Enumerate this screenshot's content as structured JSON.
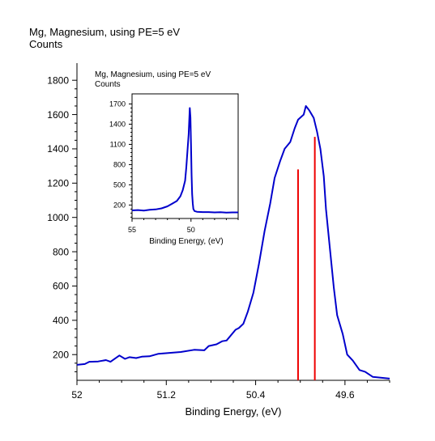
{
  "chart_data": [
    {
      "type": "line",
      "title": "Mg, Magnesium, using PE=5 eV",
      "ylabel": "Counts",
      "xlabel": "Binding Energy, (eV)",
      "x_reversed": true,
      "xlim": [
        52.0,
        49.2
      ],
      "ylim": [
        50,
        1900
      ],
      "x_ticks": [
        "52",
        "51.2",
        "50.4",
        "49.6"
      ],
      "x_tick_values": [
        52.0,
        51.2,
        50.4,
        49.6
      ],
      "y_ticks": [
        "200",
        "400",
        "600",
        "800",
        "1000",
        "1200",
        "1400",
        "1600",
        "1800"
      ],
      "y_tick_values": [
        200,
        400,
        600,
        800,
        1000,
        1200,
        1400,
        1600,
        1800
      ],
      "line_color": "#0000cc",
      "series": [
        {
          "x": [
            52.0,
            51.93,
            51.89,
            51.81,
            51.74,
            51.7,
            51.62,
            51.57,
            51.53,
            51.47,
            51.42,
            51.35,
            51.27,
            51.17,
            51.07,
            50.95,
            50.86,
            50.82,
            50.75,
            50.7,
            50.66,
            50.58,
            50.55,
            50.51,
            50.47,
            50.42,
            50.37,
            50.32,
            50.27,
            50.23,
            50.18,
            50.14,
            50.09,
            50.05,
            50.02,
            49.97,
            49.95,
            49.92,
            49.88,
            49.85,
            49.82,
            49.79,
            49.77,
            49.74,
            49.7,
            49.67,
            49.62,
            49.58,
            49.53,
            49.47,
            49.42,
            49.35,
            49.28,
            49.2
          ],
          "y": [
            140,
            145,
            158,
            160,
            168,
            158,
            195,
            175,
            185,
            180,
            188,
            190,
            205,
            210,
            215,
            228,
            225,
            250,
            260,
            278,
            282,
            345,
            355,
            380,
            450,
            560,
            730,
            920,
            1080,
            1230,
            1330,
            1400,
            1440,
            1520,
            1570,
            1600,
            1650,
            1625,
            1580,
            1500,
            1400,
            1240,
            1050,
            850,
            590,
            430,
            320,
            200,
            165,
            110,
            100,
            70,
            65,
            60
          ]
        }
      ],
      "red_lines": [
        {
          "x": 49.87,
          "y": 1470
        },
        {
          "x": 50.02,
          "y": 1280
        }
      ],
      "red_color": "#ee0000"
    },
    {
      "type": "line",
      "title": "Mg, Magnesium, using PE=5 eV",
      "ylabel": "Counts",
      "xlabel": "Binding Energy, (eV)",
      "x_reversed": true,
      "xlim": [
        55.0,
        46.0
      ],
      "ylim": [
        0,
        1850
      ],
      "x_ticks": [
        "55",
        "50"
      ],
      "x_tick_values": [
        55.0,
        50.0
      ],
      "y_ticks": [
        "200",
        "500",
        "800",
        "1100",
        "1400",
        "1700"
      ],
      "y_tick_values": [
        200,
        500,
        800,
        1100,
        1400,
        1700
      ],
      "line_color": "#0000cc",
      "series": [
        {
          "x": [
            55.0,
            54.5,
            54.0,
            53.5,
            53.0,
            52.5,
            52.0,
            51.6,
            51.2,
            50.9,
            50.7,
            50.5,
            50.4,
            50.3,
            50.2,
            50.15,
            50.1,
            50.05,
            50.0,
            49.95,
            49.9,
            49.85,
            49.8,
            49.7,
            49.5,
            49.0,
            48.5,
            48.0,
            47.5,
            47.0,
            46.5,
            46.0
          ],
          "y": [
            120,
            125,
            118,
            130,
            135,
            150,
            180,
            220,
            260,
            330,
            420,
            560,
            760,
            1000,
            1250,
            1450,
            1640,
            1500,
            1100,
            650,
            360,
            220,
            140,
            110,
            100,
            95,
            95,
            90,
            92,
            88,
            90,
            90
          ]
        }
      ]
    }
  ]
}
